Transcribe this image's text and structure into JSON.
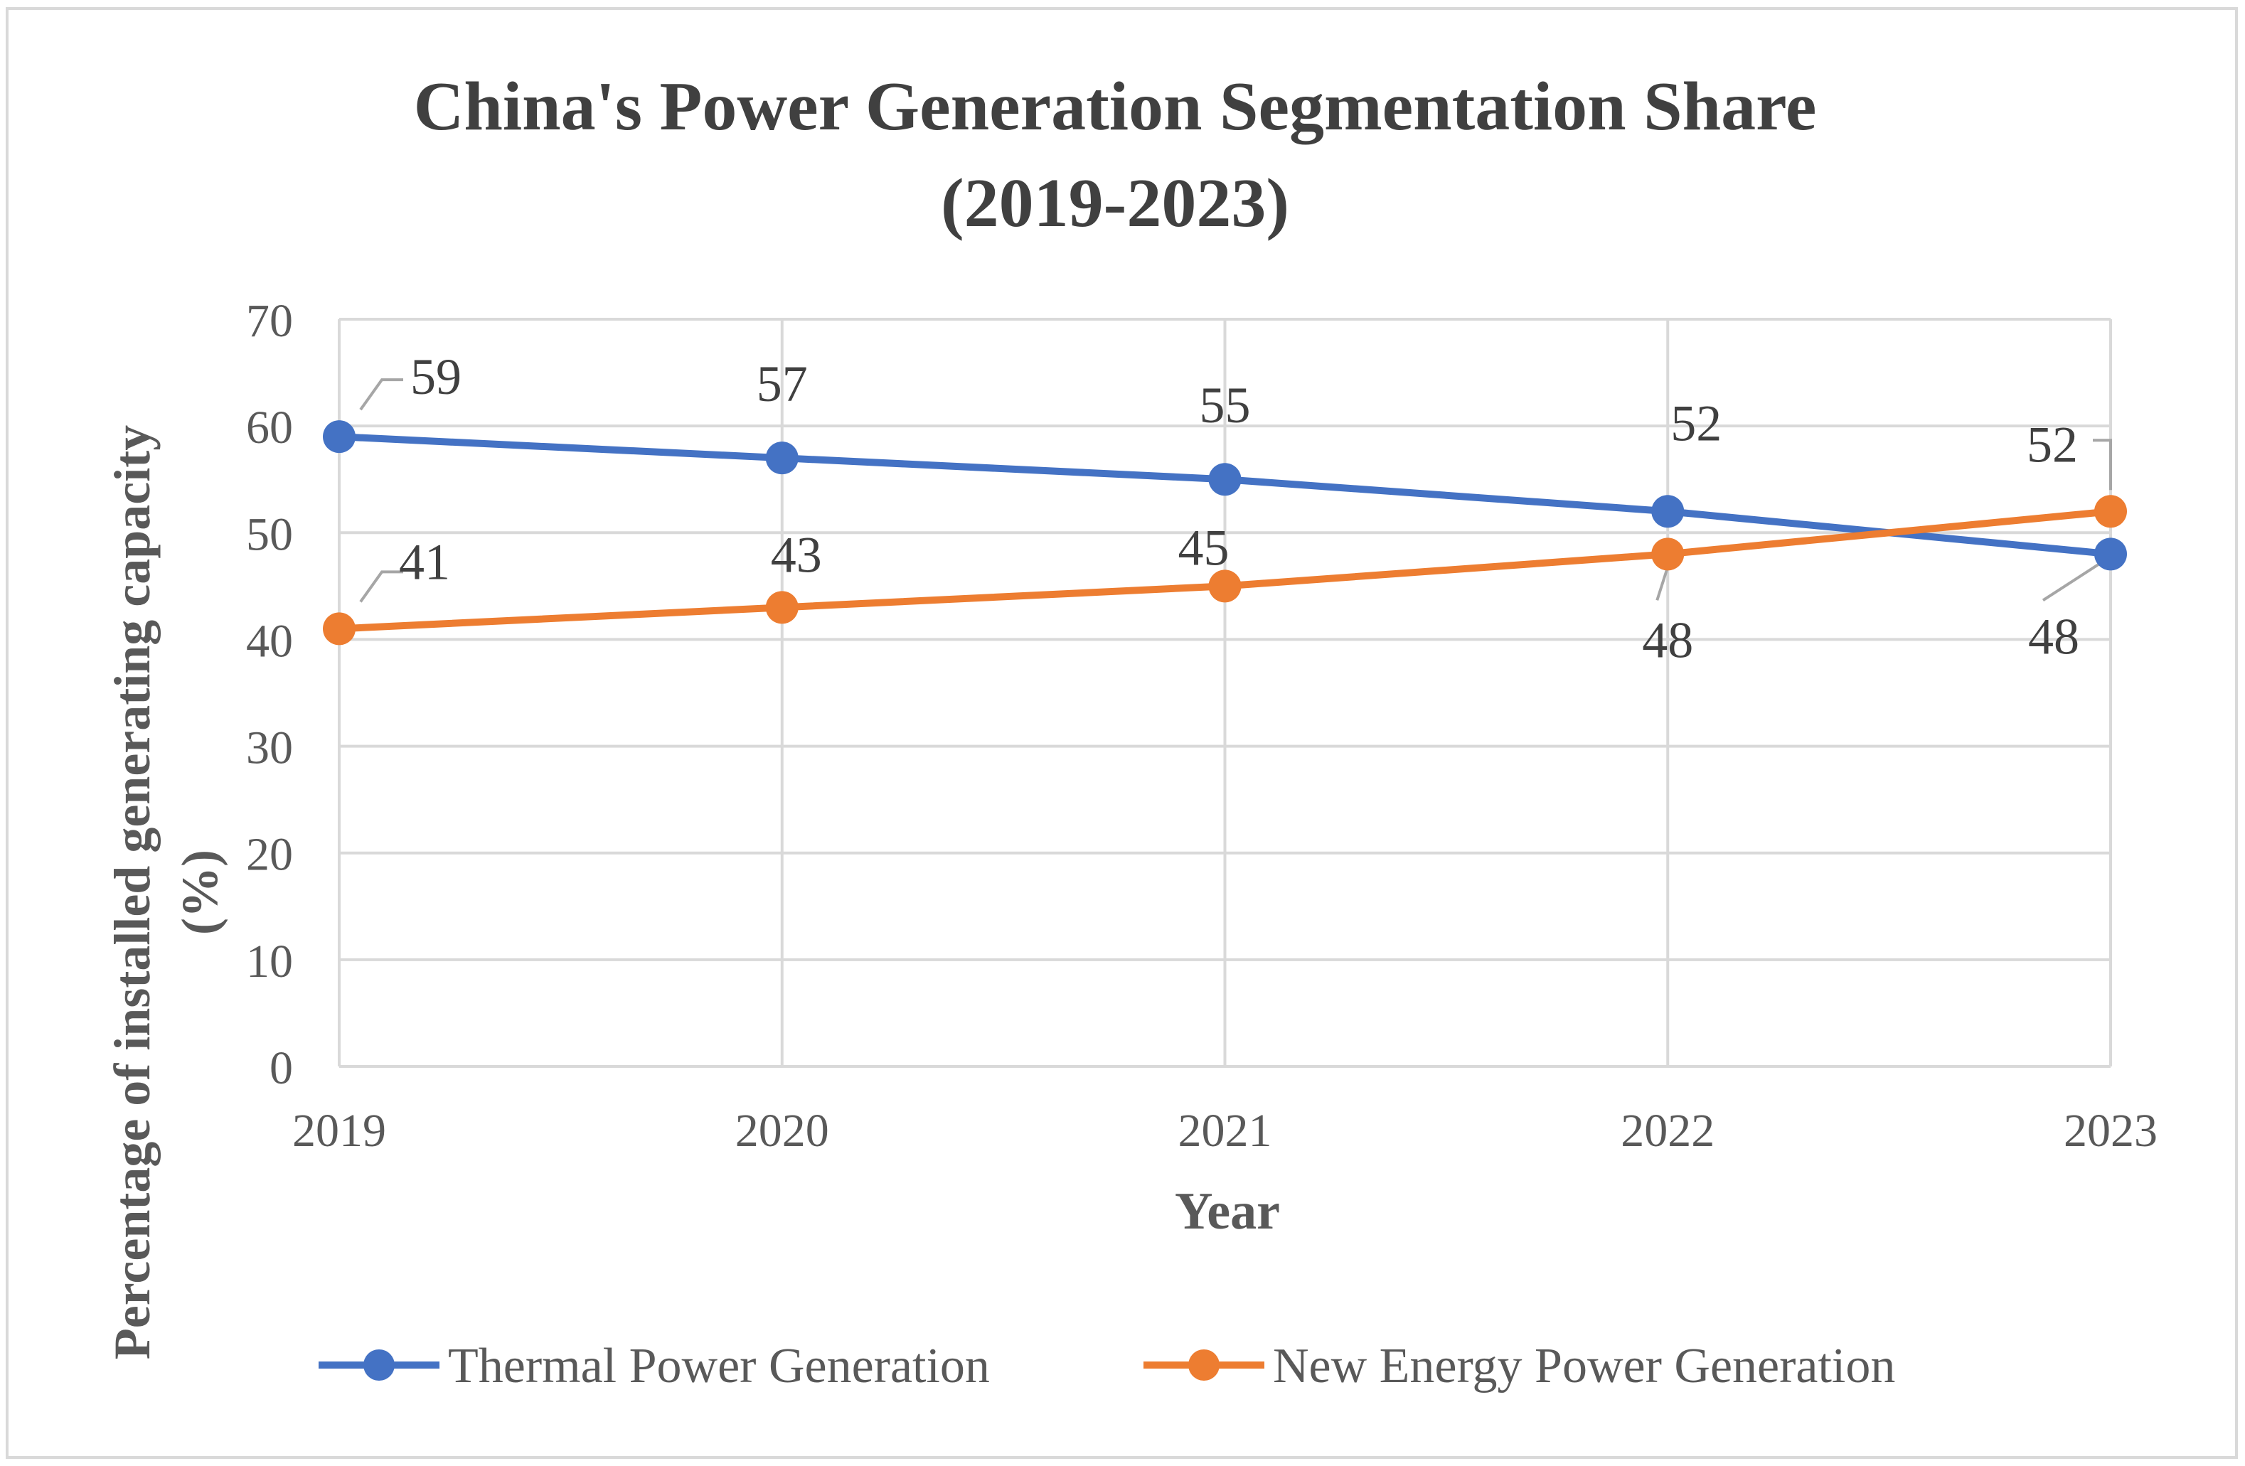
{
  "chart_data": {
    "type": "line",
    "title_line1": "China's Power Generation Segmentation Share",
    "title_line2": "(2019-2023)",
    "xlabel": "Year",
    "ylabel_line1": "Percentage of installed generating capacity",
    "ylabel_line2": "(%)",
    "categories": [
      "2019",
      "2020",
      "2021",
      "2022",
      "2023"
    ],
    "ylim": [
      0,
      70
    ],
    "yticks": [
      "0",
      "10",
      "20",
      "30",
      "40",
      "50",
      "60",
      "70"
    ],
    "grid": true,
    "legend_position": "bottom",
    "series": [
      {
        "name": "Thermal Power Generation",
        "color": "#4472C4",
        "values": [
          59,
          57,
          55,
          52,
          48
        ],
        "labels": [
          "59",
          "57",
          "55",
          "52",
          "48"
        ]
      },
      {
        "name": "New Energy Power Generation",
        "color": "#ED7D31",
        "values": [
          41,
          43,
          45,
          48,
          52
        ],
        "labels": [
          "41",
          "43",
          "45",
          "48",
          "52"
        ]
      }
    ]
  }
}
